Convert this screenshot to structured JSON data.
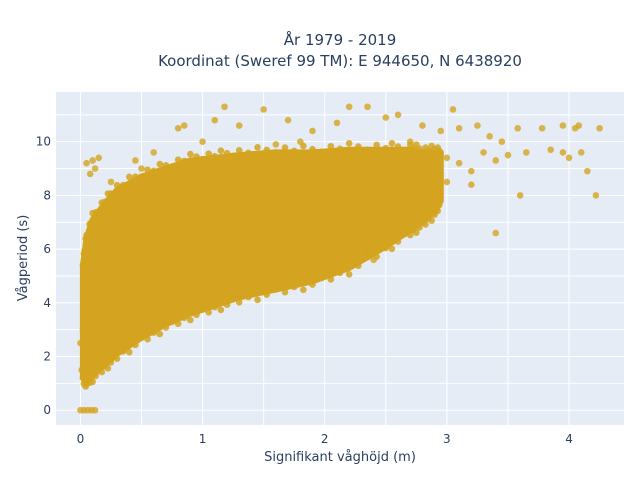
{
  "chart_data": {
    "type": "scatter",
    "title_line1": "År 1979 - 2019",
    "title_line2": "Koordinat (Sweref 99 TM): E 944650, N 6438920",
    "xlabel": "Signifikant våghöjd (m)",
    "ylabel": "Vågperiod (s)",
    "xlim": [
      -0.2,
      4.45
    ],
    "ylim": [
      -0.55,
      11.85
    ],
    "x_ticks": [
      0,
      1,
      2,
      3,
      4
    ],
    "y_ticks": [
      0,
      2,
      4,
      6,
      8,
      10
    ],
    "grid": true,
    "legend": "none",
    "series": [
      {
        "marker_color": "#d4a420",
        "envelope": {
          "x": [
            0.02,
            0.05,
            0.1,
            0.2,
            0.3,
            0.5,
            0.7,
            0.9,
            1.1,
            1.3,
            1.6,
            1.9,
            2.2,
            2.5,
            2.7,
            2.8,
            2.9,
            2.95
          ],
          "y_lower": [
            1.2,
            1.1,
            1.3,
            1.7,
            2.1,
            2.7,
            3.2,
            3.6,
            3.9,
            4.2,
            4.5,
            4.8,
            5.3,
            6.1,
            6.7,
            7.0,
            7.4,
            7.8
          ],
          "y_upper": [
            5.4,
            6.4,
            7.1,
            7.7,
            8.2,
            8.7,
            9.0,
            9.3,
            9.4,
            9.5,
            9.6,
            9.6,
            9.7,
            9.7,
            9.7,
            9.6,
            9.6,
            9.6
          ]
        },
        "points": [
          {
            "x": 0.0,
            "y": 0.0
          },
          {
            "x": 0.03,
            "y": 0.0
          },
          {
            "x": 0.06,
            "y": 0.0
          },
          {
            "x": 0.09,
            "y": 0.0
          },
          {
            "x": 0.12,
            "y": 0.0
          },
          {
            "x": 0.1,
            "y": 9.3
          },
          {
            "x": 0.15,
            "y": 9.4
          },
          {
            "x": 0.08,
            "y": 8.8
          },
          {
            "x": 0.12,
            "y": 9.0
          },
          {
            "x": 0.45,
            "y": 9.3
          },
          {
            "x": 0.6,
            "y": 9.6
          },
          {
            "x": 0.8,
            "y": 10.5
          },
          {
            "x": 0.85,
            "y": 10.6
          },
          {
            "x": 1.0,
            "y": 10.0
          },
          {
            "x": 1.1,
            "y": 10.8
          },
          {
            "x": 1.18,
            "y": 11.3
          },
          {
            "x": 1.3,
            "y": 10.6
          },
          {
            "x": 1.5,
            "y": 11.2
          },
          {
            "x": 1.7,
            "y": 10.8
          },
          {
            "x": 1.9,
            "y": 10.4
          },
          {
            "x": 2.1,
            "y": 10.7
          },
          {
            "x": 2.2,
            "y": 11.3
          },
          {
            "x": 2.35,
            "y": 11.3
          },
          {
            "x": 2.5,
            "y": 10.9
          },
          {
            "x": 2.6,
            "y": 11.0
          },
          {
            "x": 2.8,
            "y": 10.6
          },
          {
            "x": 2.95,
            "y": 10.4
          },
          {
            "x": 3.05,
            "y": 11.2
          },
          {
            "x": 3.1,
            "y": 10.5
          },
          {
            "x": 3.25,
            "y": 10.6
          },
          {
            "x": 3.35,
            "y": 10.2
          },
          {
            "x": 3.45,
            "y": 10.0
          },
          {
            "x": 3.0,
            "y": 9.4
          },
          {
            "x": 3.1,
            "y": 9.2
          },
          {
            "x": 3.2,
            "y": 8.9
          },
          {
            "x": 3.3,
            "y": 9.6
          },
          {
            "x": 3.4,
            "y": 9.3
          },
          {
            "x": 3.5,
            "y": 9.5
          },
          {
            "x": 3.58,
            "y": 10.5
          },
          {
            "x": 3.65,
            "y": 9.6
          },
          {
            "x": 3.78,
            "y": 10.5
          },
          {
            "x": 3.85,
            "y": 9.7
          },
          {
            "x": 3.95,
            "y": 10.6
          },
          {
            "x": 3.95,
            "y": 9.6
          },
          {
            "x": 4.0,
            "y": 9.4
          },
          {
            "x": 4.05,
            "y": 10.5
          },
          {
            "x": 4.08,
            "y": 10.6
          },
          {
            "x": 4.1,
            "y": 9.6
          },
          {
            "x": 4.15,
            "y": 8.9
          },
          {
            "x": 4.22,
            "y": 8.0
          },
          {
            "x": 4.25,
            "y": 10.5
          },
          {
            "x": 3.6,
            "y": 8.0
          },
          {
            "x": 3.4,
            "y": 6.6
          },
          {
            "x": 2.9,
            "y": 8.3
          },
          {
            "x": 2.6,
            "y": 6.6
          },
          {
            "x": 2.7,
            "y": 7.0
          },
          {
            "x": 2.4,
            "y": 5.6
          },
          {
            "x": 2.3,
            "y": 5.9
          },
          {
            "x": 2.0,
            "y": 5.2
          },
          {
            "x": 3.0,
            "y": 8.5
          },
          {
            "x": 3.2,
            "y": 8.4
          },
          {
            "x": 0.05,
            "y": 9.2
          },
          {
            "x": 0.25,
            "y": 8.5
          },
          {
            "x": 0.5,
            "y": 9.0
          },
          {
            "x": 1.6,
            "y": 9.9
          },
          {
            "x": 1.8,
            "y": 10.0
          },
          {
            "x": 2.7,
            "y": 10.0
          },
          {
            "x": 0.01,
            "y": 1.5
          },
          {
            "x": 0.03,
            "y": 2.0
          },
          {
            "x": 0.0,
            "y": 2.5
          },
          {
            "x": 0.02,
            "y": 3.0
          }
        ]
      }
    ]
  }
}
